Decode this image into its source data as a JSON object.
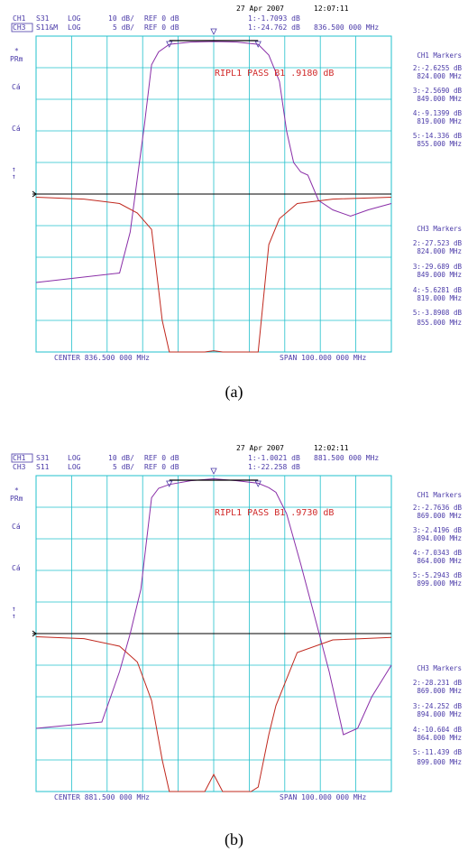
{
  "colors": {
    "grid": "#22c0cc",
    "ch1_trace": "#8a2fa8",
    "ch3_trace": "#c0281e",
    "header_text": "#4a3aa8",
    "ripple_text": "#d02a2a",
    "reference_line": "#000000"
  },
  "panels": [
    {
      "caption": "(a)",
      "header": {
        "date": "27 Apr 2007",
        "time": "12:07:11",
        "ch1_label": "CH1",
        "ch1_param": "S31",
        "ch1_fmt": "LOG",
        "ch1_scale": "10 dB/",
        "ch1_ref": "REF 0 dB",
        "ch1_marker": "1:-1.7093 dB",
        "ch3_label": "CH3",
        "ch3_param": "S11&M",
        "ch3_fmt": "LOG",
        "ch3_scale": "5 dB/",
        "ch3_ref": "REF 0 dB",
        "ch3_marker": "1:-24.762 dB",
        "marker_freq": "836.500 000 MHz"
      },
      "left_labels": {
        "star": "*",
        "prm": "PRm",
        "ca1": "Cá",
        "ca2": "Cá",
        "arrow1": "↑",
        "arrow2": "↑"
      },
      "ripple_text": "RIPL1 PASS B1 .9180 dB",
      "footer": {
        "center": "CENTER 836.500 000 MHz",
        "span": "SPAN 100.000 000 MHz"
      },
      "ch1_markers": {
        "title": "CH1 Markers",
        "items": [
          {
            "val": "2:-2.6255 dB",
            "freq": "824.000 MHz"
          },
          {
            "val": "3:-2.5690 dB",
            "freq": "849.000 MHz"
          },
          {
            "val": "4:-9.1399 dB",
            "freq": "819.000 MHz"
          },
          {
            "val": "5:-14.336 dB",
            "freq": "855.000 MHz"
          }
        ]
      },
      "ch3_markers": {
        "title": "CH3 Markers",
        "items": [
          {
            "val": "2:-27.523 dB",
            "freq": "824.000 MHz"
          },
          {
            "val": "3:-29.689 dB",
            "freq": "849.000 MHz"
          },
          {
            "val": "4:-5.6281 dB",
            "freq": "819.000 MHz"
          },
          {
            "val": "5:-3.8908 dB",
            "freq": "855.000 MHz"
          }
        ]
      }
    },
    {
      "caption": "(b)",
      "header": {
        "date": "27 Apr 2007",
        "time": "12:02:11",
        "ch1_label": "CH1",
        "ch1_param": "S31",
        "ch1_fmt": "LOG",
        "ch1_scale": "10 dB/",
        "ch1_ref": "REF 0 dB",
        "ch1_marker": "1:-1.0021 dB",
        "ch3_label": "CH3",
        "ch3_param": "S11",
        "ch3_fmt": "LOG",
        "ch3_scale": "5 dB/",
        "ch3_ref": "REF 0 dB",
        "ch3_marker": "1:-22.258 dB",
        "marker_freq": "881.500 000 MHz"
      },
      "left_labels": {
        "star": "*",
        "prm": "PRm",
        "ca1": "Cá",
        "ca2": "Cá",
        "arrow1": "↑",
        "arrow2": "↑"
      },
      "ripple_text": "RIPL1 PASS B1 .9730 dB",
      "footer": {
        "center": "CENTER 881.500 000 MHz",
        "span": "SPAN 100.000 000 MHz"
      },
      "ch1_markers": {
        "title": "CH1 Markers",
        "items": [
          {
            "val": "2:-2.7636 dB",
            "freq": "869.000 MHz"
          },
          {
            "val": "3:-2.4196 dB",
            "freq": "894.000 MHz"
          },
          {
            "val": "4:-7.0343 dB",
            "freq": "864.000 MHz"
          },
          {
            "val": "5:-5.2943 dB",
            "freq": "899.000 MHz"
          }
        ]
      },
      "ch3_markers": {
        "title": "CH3 Markers",
        "items": [
          {
            "val": "2:-28.231 dB",
            "freq": "869.000 MHz"
          },
          {
            "val": "3:-24.252 dB",
            "freq": "894.000 MHz"
          },
          {
            "val": "4:-10.604 dB",
            "freq": "864.000 MHz"
          },
          {
            "val": "5:-11.439 dB",
            "freq": "899.000 MHz"
          }
        ]
      }
    }
  ],
  "chart_data": [
    {
      "type": "line",
      "title": "",
      "xlabel": "",
      "ylabel": "",
      "x_unit": "MHz",
      "xlim": [
        786.5,
        886.5
      ],
      "grid": true,
      "series": [
        {
          "name": "S31",
          "y_unit": "dB",
          "ylim": [
            -100,
            0
          ],
          "x": [
            786.5,
            810.0,
            813.0,
            815.0,
            817.0,
            819.0,
            821.0,
            824.0,
            830.0,
            836.5,
            843.0,
            849.0,
            852.0,
            855.0,
            857.0,
            859.0,
            861.0,
            863.0,
            866.0,
            870.0,
            875.0,
            880.0,
            886.5
          ],
          "y": [
            -78,
            -75,
            -62,
            -45,
            -28,
            -9.1,
            -5.0,
            -2.6,
            -1.9,
            -1.7,
            -1.9,
            -2.6,
            -6.0,
            -14.3,
            -30,
            -40,
            -43,
            -44,
            -52,
            -55,
            -57,
            -55,
            -53
          ]
        },
        {
          "name": "S11&M",
          "y_unit": "dB",
          "ylim": [
            -50,
            0
          ],
          "x": [
            786.5,
            800.0,
            810.0,
            815.0,
            819.0,
            822.0,
            824.0,
            830.0,
            834.0,
            836.5,
            839.0,
            843.0,
            847.0,
            849.0,
            852.0,
            855.0,
            860.0,
            870.0,
            886.5
          ],
          "y": [
            -0.5,
            -0.8,
            -1.5,
            -3.0,
            -5.6,
            -20,
            -27.5,
            -31,
            -26,
            -24.8,
            -27,
            -25,
            -31,
            -29.7,
            -8,
            -3.9,
            -1.5,
            -0.8,
            -0.5
          ]
        }
      ]
    },
    {
      "type": "line",
      "title": "",
      "xlabel": "",
      "ylabel": "",
      "x_unit": "MHz",
      "xlim": [
        831.5,
        931.5
      ],
      "grid": true,
      "series": [
        {
          "name": "S31",
          "y_unit": "dB",
          "ylim": [
            -100,
            0
          ],
          "x": [
            831.5,
            850.0,
            855.0,
            858.0,
            861.0,
            864.0,
            866.0,
            869.0,
            875.0,
            881.5,
            888.0,
            894.0,
            897.0,
            899.0,
            902.0,
            906.0,
            910.0,
            914.0,
            918.0,
            922.0,
            926.0,
            931.5
          ],
          "y": [
            -80,
            -78,
            -62,
            -50,
            -36,
            -7.0,
            -4.0,
            -2.8,
            -1.6,
            -1.0,
            -1.6,
            -2.4,
            -3.8,
            -5.3,
            -12,
            -28,
            -45,
            -62,
            -82,
            -80,
            -70,
            -60
          ]
        },
        {
          "name": "S11",
          "y_unit": "dB",
          "ylim": [
            -50,
            0
          ],
          "x": [
            831.5,
            845.0,
            855.0,
            860.0,
            864.0,
            867.0,
            869.0,
            875.0,
            879.0,
            881.5,
            884.0,
            888.0,
            892.0,
            894.0,
            897.0,
            899.0,
            905.0,
            915.0,
            931.5
          ],
          "y": [
            -0.5,
            -0.8,
            -2.0,
            -4.5,
            -10.6,
            -20,
            -28.2,
            -31,
            -26,
            -22.3,
            -26,
            -28,
            -31,
            -24.3,
            -16,
            -11.4,
            -3.0,
            -1.0,
            -0.6
          ]
        }
      ]
    }
  ]
}
